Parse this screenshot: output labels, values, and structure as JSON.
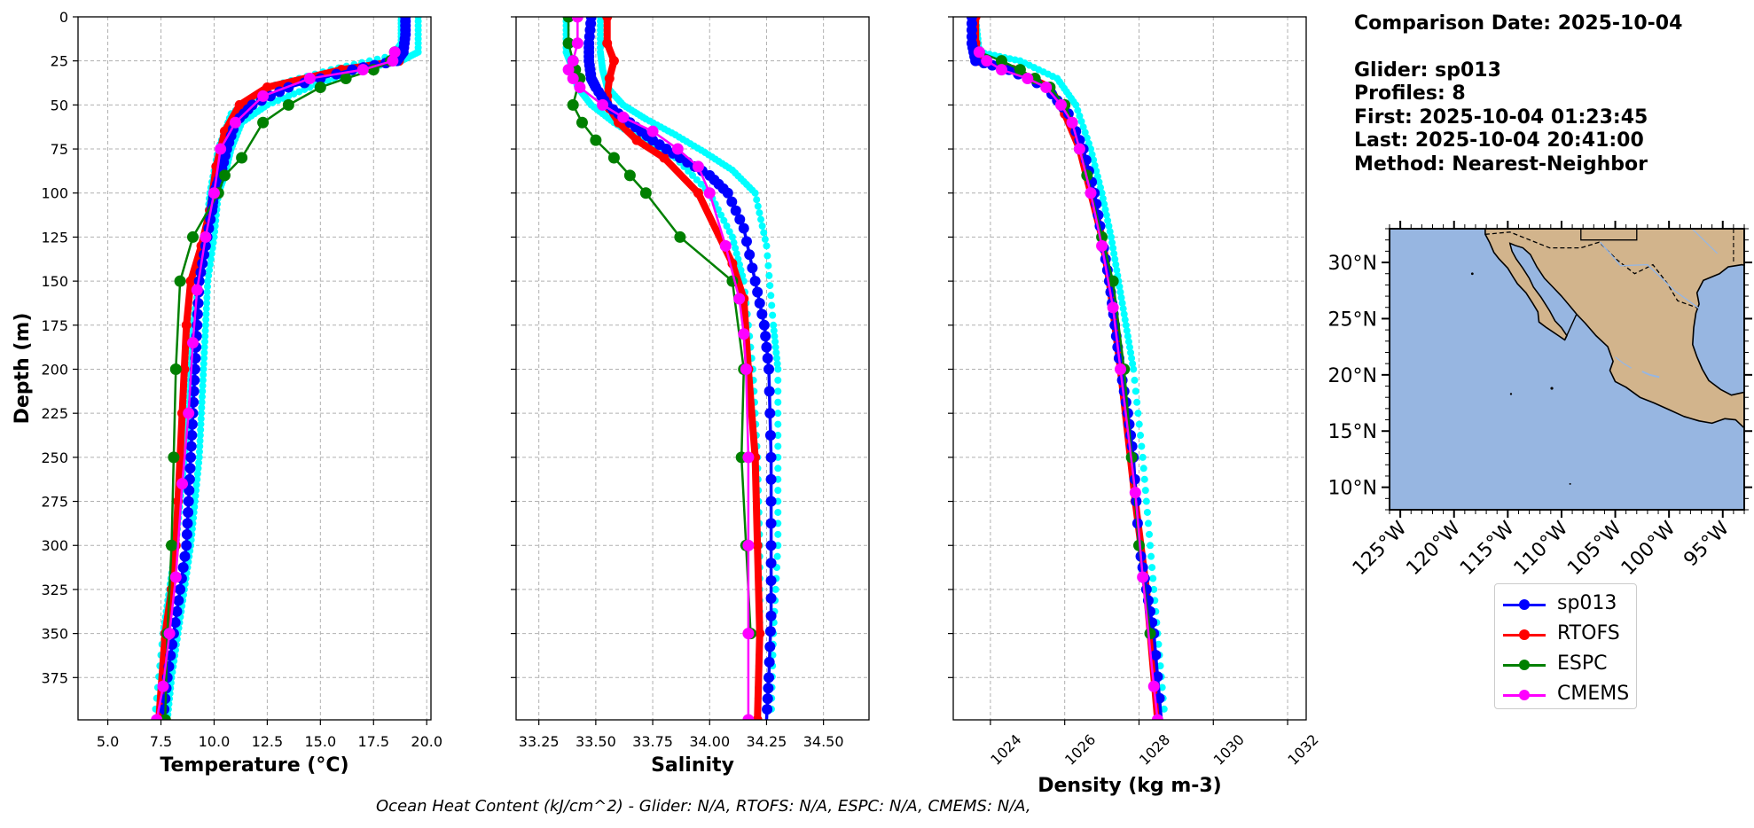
{
  "info": {
    "date_line": "Comparison Date: 2025-10-04",
    "glider_line": "Glider: sp013",
    "profiles_line": "Profiles: 8",
    "first_line": "First: 2025-10-04 01:23:45",
    "last_line": "Last: 2025-10-04 20:41:00",
    "method_line": "Method: Nearest-Neighbor"
  },
  "footer": "Ocean Heat Content (kJ/cm^2) - Glider: N/A,  RTOFS: N/A,  ESPC: N/A,  CMEMS: N/A,",
  "colors": {
    "glider": "#0000ff",
    "glider_halo": "#00ffff",
    "rtofs": "#ff0000",
    "espc": "#008000",
    "cmems": "#ff00ff",
    "ocean": "#97b6e1",
    "land": "#d2b48c",
    "grid": "#b0b0b0"
  },
  "legend": [
    {
      "label": "sp013",
      "color": "#0000ff"
    },
    {
      "label": "RTOFS",
      "color": "#ff0000"
    },
    {
      "label": "ESPC",
      "color": "#008000"
    },
    {
      "label": "CMEMS",
      "color": "#ff00ff"
    }
  ],
  "chart_data": [
    {
      "type": "line",
      "xlabel": "Temperature (°C)",
      "ylabel": "Depth (m)",
      "xlim": [
        3.6,
        20.2
      ],
      "ylim": [
        399,
        0
      ],
      "xticks": [
        "5.0",
        "7.5",
        "10.0",
        "12.5",
        "15.0",
        "17.5",
        "20.0"
      ],
      "yticks": [
        "0",
        "25",
        "50",
        "75",
        "100",
        "125",
        "150",
        "175",
        "200",
        "225",
        "250",
        "275",
        "300",
        "325",
        "350",
        "375"
      ],
      "grid": true,
      "series": [
        {
          "name": "sp013",
          "x": [
            19.0,
            19.0,
            18.9,
            18.6,
            16.5,
            13.5,
            11.8,
            11.0,
            10.6,
            10.3,
            10.0,
            9.9,
            9.6,
            9.3,
            9.2,
            9.1,
            9.0,
            8.9,
            8.8,
            8.7,
            8.4,
            8.1,
            7.8,
            7.6
          ],
          "y": [
            0,
            10,
            20,
            25,
            30,
            40,
            50,
            60,
            75,
            90,
            100,
            110,
            130,
            150,
            175,
            200,
            225,
            250,
            275,
            300,
            325,
            350,
            375,
            399
          ]
        },
        {
          "name": "RTOFS",
          "x": [
            19.0,
            19.0,
            18.9,
            18.7,
            16.0,
            12.5,
            11.2,
            10.5,
            10.1,
            9.8,
            9.4,
            8.9,
            8.7,
            8.6,
            8.5,
            8.4,
            8.3,
            8.2,
            8.0,
            7.7,
            7.4
          ],
          "y": [
            0,
            10,
            20,
            25,
            30,
            40,
            50,
            65,
            85,
            110,
            130,
            150,
            175,
            200,
            225,
            250,
            275,
            300,
            325,
            350,
            399
          ]
        },
        {
          "name": "ESPC",
          "x": [
            18.5,
            18.3,
            17.5,
            16.2,
            15.0,
            13.5,
            12.3,
            11.3,
            10.5,
            10.2,
            9.0,
            8.4,
            8.2,
            8.1,
            8.0,
            7.8,
            7.7
          ],
          "y": [
            20,
            25,
            30,
            35,
            40,
            50,
            60,
            80,
            90,
            100,
            125,
            150,
            200,
            250,
            300,
            350,
            399
          ]
        },
        {
          "name": "CMEMS",
          "x": [
            18.5,
            18.4,
            17.0,
            14.5,
            12.3,
            11.0,
            10.3,
            10.0,
            9.6,
            9.2,
            9.0,
            8.8,
            8.5,
            8.2,
            7.9,
            7.6,
            7.3
          ],
          "y": [
            20,
            25,
            30,
            35,
            45,
            60,
            75,
            100,
            125,
            155,
            185,
            225,
            265,
            318,
            350,
            380,
            399
          ]
        },
        {
          "name": "",
          "x": [
            19.6,
            19.6,
            18.8,
            16.8,
            14.5,
            12.5,
            11.3,
            10.8,
            10.5,
            10.2,
            10.0,
            9.7,
            9.6,
            9.5,
            9.4,
            9.3,
            9.1,
            8.9,
            8.6,
            8.3,
            8.0,
            7.8
          ],
          "y": [
            0,
            20,
            25,
            30,
            40,
            50,
            60,
            75,
            90,
            100,
            125,
            150,
            175,
            200,
            225,
            250,
            275,
            300,
            325,
            350,
            375,
            399
          ]
        },
        {
          "name": "",
          "x": [
            18.8,
            18.8,
            18.4,
            15.5,
            12.5,
            10.8,
            10.2,
            9.8,
            9.6,
            9.3,
            9.0,
            8.9,
            8.8,
            8.6,
            8.4,
            8.2,
            7.9,
            7.6,
            7.2
          ],
          "y": [
            0,
            15,
            22,
            30,
            40,
            55,
            75,
            100,
            125,
            150,
            175,
            200,
            225,
            250,
            275,
            300,
            325,
            350,
            399
          ]
        }
      ]
    },
    {
      "type": "line",
      "xlabel": "Salinity",
      "ylabel": "",
      "xlim": [
        33.15,
        34.7
      ],
      "ylim": [
        399,
        0
      ],
      "xticks": [
        "33.25",
        "33.50",
        "33.75",
        "34.00",
        "34.25",
        "34.50"
      ],
      "grid": true,
      "series": [
        {
          "name": "sp013",
          "x": [
            33.48,
            33.47,
            33.47,
            33.48,
            33.5,
            33.55,
            33.65,
            33.75,
            33.87,
            34.0,
            34.08,
            34.15,
            34.2,
            34.24,
            34.26,
            34.27,
            34.27,
            34.27,
            34.26,
            34.25
          ],
          "y": [
            0,
            15,
            25,
            35,
            40,
            50,
            60,
            70,
            80,
            90,
            100,
            120,
            150,
            175,
            200,
            250,
            300,
            340,
            375,
            399
          ]
        },
        {
          "name": "RTOFS",
          "x": [
            33.55,
            33.55,
            33.58,
            33.56,
            33.55,
            33.56,
            33.6,
            33.68,
            33.8,
            33.95,
            34.1,
            34.15,
            34.17,
            34.2,
            34.21,
            34.22,
            34.21
          ],
          "y": [
            0,
            15,
            25,
            35,
            45,
            52,
            60,
            70,
            80,
            100,
            140,
            160,
            200,
            250,
            300,
            350,
            399
          ]
        },
        {
          "name": "ESPC",
          "x": [
            33.38,
            33.38,
            33.4,
            33.41,
            33.43,
            33.4,
            33.44,
            33.5,
            33.58,
            33.65,
            33.72,
            33.87,
            34.1,
            34.15,
            34.14,
            34.16,
            34.18
          ],
          "y": [
            0,
            15,
            25,
            30,
            35,
            50,
            60,
            70,
            80,
            90,
            100,
            125,
            150,
            200,
            250,
            300,
            350
          ]
        },
        {
          "name": "CMEMS",
          "x": [
            33.42,
            33.42,
            33.4,
            33.38,
            33.4,
            33.43,
            33.53,
            33.62,
            33.75,
            33.86,
            33.95,
            34.0,
            34.07,
            34.13,
            34.15,
            34.16,
            34.17,
            34.17,
            34.17,
            34.17
          ],
          "y": [
            0,
            15,
            25,
            30,
            35,
            40,
            50,
            57,
            65,
            75,
            85,
            100,
            130,
            160,
            180,
            200,
            250,
            300,
            350,
            399
          ]
        },
        {
          "name": "",
          "x": [
            33.52,
            33.52,
            33.53,
            33.55,
            33.62,
            33.72,
            33.85,
            33.98,
            34.1,
            34.2,
            34.25,
            34.28,
            34.3,
            34.3,
            34.3,
            34.28,
            34.27
          ],
          "y": [
            0,
            20,
            30,
            40,
            50,
            58,
            67,
            77,
            87,
            100,
            130,
            175,
            200,
            250,
            300,
            350,
            399
          ]
        },
        {
          "name": "",
          "x": [
            33.37,
            33.37,
            33.4,
            33.42,
            33.48,
            33.58,
            33.7,
            33.85,
            34.0,
            34.1,
            34.15,
            34.19,
            34.21,
            34.22,
            34.22,
            34.21
          ],
          "y": [
            0,
            20,
            30,
            40,
            50,
            60,
            70,
            80,
            100,
            125,
            150,
            200,
            250,
            300,
            350,
            399
          ]
        }
      ]
    },
    {
      "type": "line",
      "xlabel": "Density (kg m-3)",
      "ylabel": "",
      "xlim": [
        1023.0,
        1032.5
      ],
      "ylim": [
        399,
        0
      ],
      "xticks": [
        "1024",
        "1026",
        "1028",
        "1030",
        "1032"
      ],
      "grid": true,
      "series": [
        {
          "name": "sp013",
          "x": [
            1023.5,
            1023.5,
            1023.6,
            1024.5,
            1025.5,
            1026.1,
            1026.5,
            1026.8,
            1027.0,
            1027.2,
            1027.35,
            1027.5,
            1027.7,
            1027.85,
            1028.0,
            1028.2,
            1028.4,
            1028.6
          ],
          "y": [
            0,
            15,
            25,
            30,
            40,
            55,
            75,
            100,
            125,
            150,
            175,
            200,
            225,
            250,
            300,
            325,
            350,
            399
          ]
        },
        {
          "name": "RTOFS",
          "x": [
            1023.6,
            1023.6,
            1023.7,
            1024.6,
            1025.6,
            1026.0,
            1026.4,
            1026.7,
            1027.0,
            1027.2,
            1027.5,
            1027.9,
            1028.2,
            1028.5
          ],
          "y": [
            0,
            15,
            25,
            30,
            40,
            55,
            75,
            100,
            125,
            150,
            200,
            275,
            325,
            399
          ]
        },
        {
          "name": "ESPC",
          "x": [
            1023.7,
            1024.3,
            1024.8,
            1025.2,
            1025.6,
            1026.0,
            1026.2,
            1026.4,
            1026.6,
            1027.0,
            1027.3,
            1027.6,
            1027.8,
            1028.0,
            1028.3
          ],
          "y": [
            20,
            25,
            30,
            35,
            40,
            50,
            60,
            75,
            90,
            125,
            150,
            200,
            250,
            300,
            350
          ]
        },
        {
          "name": "CMEMS",
          "x": [
            1023.7,
            1023.9,
            1024.3,
            1025.0,
            1025.5,
            1025.9,
            1026.2,
            1026.4,
            1026.7,
            1027.0,
            1027.3,
            1027.5,
            1027.9,
            1028.1,
            1028.4,
            1028.5
          ],
          "y": [
            20,
            25,
            30,
            35,
            40,
            50,
            60,
            75,
            100,
            130,
            165,
            200,
            270,
            318,
            380,
            399
          ]
        },
        {
          "name": "",
          "x": [
            1023.6,
            1023.7,
            1024.8,
            1025.8,
            1026.3,
            1026.7,
            1027.0,
            1027.25,
            1027.45,
            1027.65,
            1027.85,
            1028.1,
            1028.3,
            1028.5,
            1028.7
          ],
          "y": [
            0,
            20,
            25,
            35,
            50,
            75,
            100,
            125,
            150,
            175,
            200,
            250,
            300,
            350,
            399
          ]
        }
      ]
    },
    {
      "type": "map",
      "lon_ticks": [
        "125°W",
        "120°W",
        "115°W",
        "110°W",
        "105°W",
        "100°W",
        "95°W"
      ],
      "lat_ticks": [
        "30°N",
        "25°N",
        "20°N",
        "15°N",
        "10°N"
      ],
      "extent": {
        "lon": [
          -126,
          -93
        ],
        "lat": [
          8,
          33
        ]
      }
    }
  ]
}
